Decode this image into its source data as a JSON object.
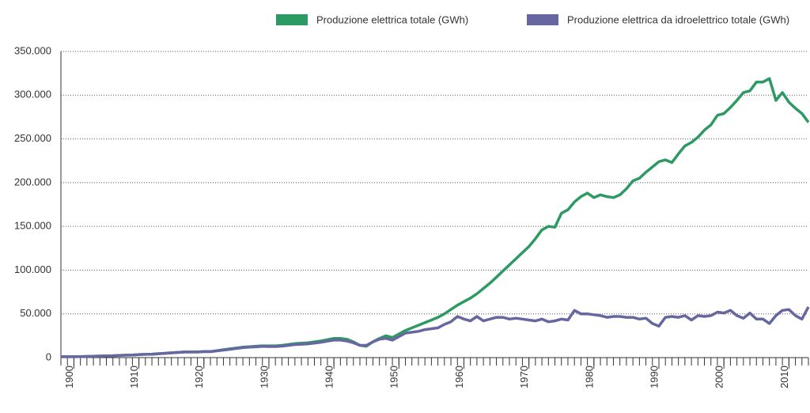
{
  "chart_data": {
    "type": "line",
    "x": [
      1898,
      1899,
      1900,
      1901,
      1902,
      1903,
      1904,
      1905,
      1906,
      1907,
      1908,
      1909,
      1910,
      1911,
      1912,
      1913,
      1914,
      1915,
      1916,
      1917,
      1918,
      1919,
      1920,
      1921,
      1922,
      1923,
      1924,
      1925,
      1926,
      1927,
      1928,
      1929,
      1930,
      1931,
      1932,
      1933,
      1934,
      1935,
      1936,
      1937,
      1938,
      1939,
      1940,
      1941,
      1942,
      1943,
      1944,
      1945,
      1946,
      1947,
      1948,
      1949,
      1950,
      1951,
      1952,
      1953,
      1954,
      1955,
      1956,
      1957,
      1958,
      1959,
      1960,
      1961,
      1962,
      1963,
      1964,
      1965,
      1966,
      1967,
      1968,
      1969,
      1970,
      1971,
      1972,
      1973,
      1974,
      1975,
      1976,
      1977,
      1978,
      1979,
      1980,
      1981,
      1982,
      1983,
      1984,
      1985,
      1986,
      1987,
      1988,
      1989,
      1990,
      1991,
      1992,
      1993,
      1994,
      1995,
      1996,
      1997,
      1998,
      1999,
      2000,
      2001,
      2002,
      2003,
      2004,
      2005,
      2006,
      2007,
      2008,
      2009,
      2010,
      2011,
      2012,
      2013
    ],
    "series": [
      {
        "name": "Produzione elettrica totale (GWh)",
        "color": "#2e9a63",
        "values": [
          1000,
          1000,
          1000,
          1200,
          1400,
          1600,
          1800,
          2000,
          2200,
          2500,
          2800,
          3000,
          3500,
          3800,
          4000,
          4500,
          5000,
          5500,
          6000,
          6500,
          6500,
          6500,
          7000,
          7000,
          8000,
          9000,
          10000,
          11000,
          12000,
          12500,
          13000,
          13500,
          13500,
          13500,
          14000,
          15000,
          16000,
          16500,
          17000,
          18000,
          19000,
          20500,
          22000,
          22000,
          21000,
          18000,
          14000,
          13000,
          18000,
          22000,
          25000,
          23000,
          27000,
          31000,
          34000,
          37000,
          40000,
          43000,
          46000,
          50000,
          55000,
          60000,
          64000,
          68000,
          73000,
          79000,
          85000,
          92000,
          99000,
          106000,
          113000,
          120000,
          127000,
          136000,
          146000,
          150000,
          149000,
          165000,
          169000,
          178000,
          184000,
          188000,
          183000,
          186000,
          184000,
          183000,
          186000,
          193000,
          202000,
          205000,
          212000,
          218000,
          224000,
          226000,
          223000,
          233000,
          242000,
          246000,
          252000,
          260000,
          266000,
          277000,
          279000,
          286000,
          294000,
          303000,
          305000,
          315000,
          315000,
          319000,
          294000,
          303000,
          292000,
          285000,
          279000,
          269000
        ]
      },
      {
        "name": "Produzione elettrica da idroelettrico totale (GWh)",
        "color": "#6667a0",
        "values": [
          1000,
          1000,
          1000,
          1200,
          1400,
          1600,
          1800,
          2000,
          2200,
          2500,
          2800,
          3000,
          3400,
          3700,
          3900,
          4400,
          4900,
          5400,
          5900,
          6300,
          6300,
          6300,
          6800,
          6800,
          7700,
          8600,
          9500,
          10500,
          11400,
          11900,
          12300,
          12800,
          12700,
          12700,
          13100,
          14000,
          14900,
          15300,
          15700,
          16600,
          17500,
          18800,
          20000,
          20000,
          19000,
          17000,
          14000,
          14000,
          18000,
          21000,
          22000,
          20000,
          24000,
          28000,
          29000,
          30000,
          32000,
          33000,
          34000,
          38000,
          41000,
          47000,
          44000,
          42000,
          47000,
          42000,
          44000,
          46000,
          46000,
          44000,
          45000,
          44000,
          43000,
          42000,
          44000,
          41000,
          42000,
          44000,
          43000,
          54000,
          50000,
          50000,
          49000,
          48000,
          46000,
          47000,
          47000,
          46000,
          46000,
          44000,
          45000,
          39000,
          36000,
          46000,
          47000,
          46000,
          48000,
          43000,
          48000,
          47000,
          48000,
          52000,
          51000,
          54000,
          48000,
          45000,
          51000,
          44000,
          44000,
          39000,
          48000,
          54000,
          55000,
          48000,
          44000,
          58000
        ]
      }
    ],
    "xlim": [
      1898,
      2013
    ],
    "xticks": [
      1900,
      1910,
      1920,
      1930,
      1940,
      1950,
      1960,
      1970,
      1980,
      1990,
      2000,
      2010
    ],
    "ylim": [
      0,
      350000
    ],
    "yticks": [
      0,
      {
        "value": 50000,
        "label": "50.000"
      },
      {
        "value": 100000,
        "label": "100.000"
      },
      {
        "value": 150000,
        "label": "150.000"
      },
      {
        "value": 200000,
        "label": "200.000"
      },
      {
        "value": 250000,
        "label": "250.000"
      },
      {
        "value": 300000,
        "label": "300.000"
      },
      {
        "value": 350000,
        "label": "350.000"
      }
    ],
    "grid": true,
    "legend": "top-right"
  }
}
